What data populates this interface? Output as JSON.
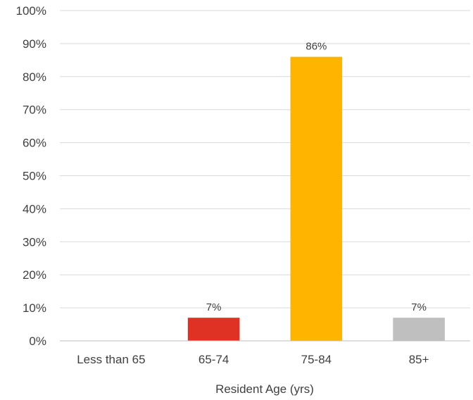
{
  "chart_data": {
    "type": "bar",
    "categories": [
      "Less than 65",
      "65-74",
      "75-84",
      "85+"
    ],
    "values": [
      0,
      7,
      86,
      7
    ],
    "data_labels": [
      "",
      "7%",
      "86%",
      "7%"
    ],
    "colors": [
      "#e03224",
      "#e03224",
      "#ffb400",
      "#bfbfbf"
    ],
    "xlabel": "Resident Age (yrs)",
    "ylabel": "",
    "ylim": [
      0,
      100
    ],
    "yticks": [
      0,
      10,
      20,
      30,
      40,
      50,
      60,
      70,
      80,
      90,
      100
    ],
    "ytick_labels": [
      "0%",
      "10%",
      "20%",
      "30%",
      "40%",
      "50%",
      "60%",
      "70%",
      "80%",
      "90%",
      "100%"
    ],
    "grid": true,
    "legend": "none"
  }
}
